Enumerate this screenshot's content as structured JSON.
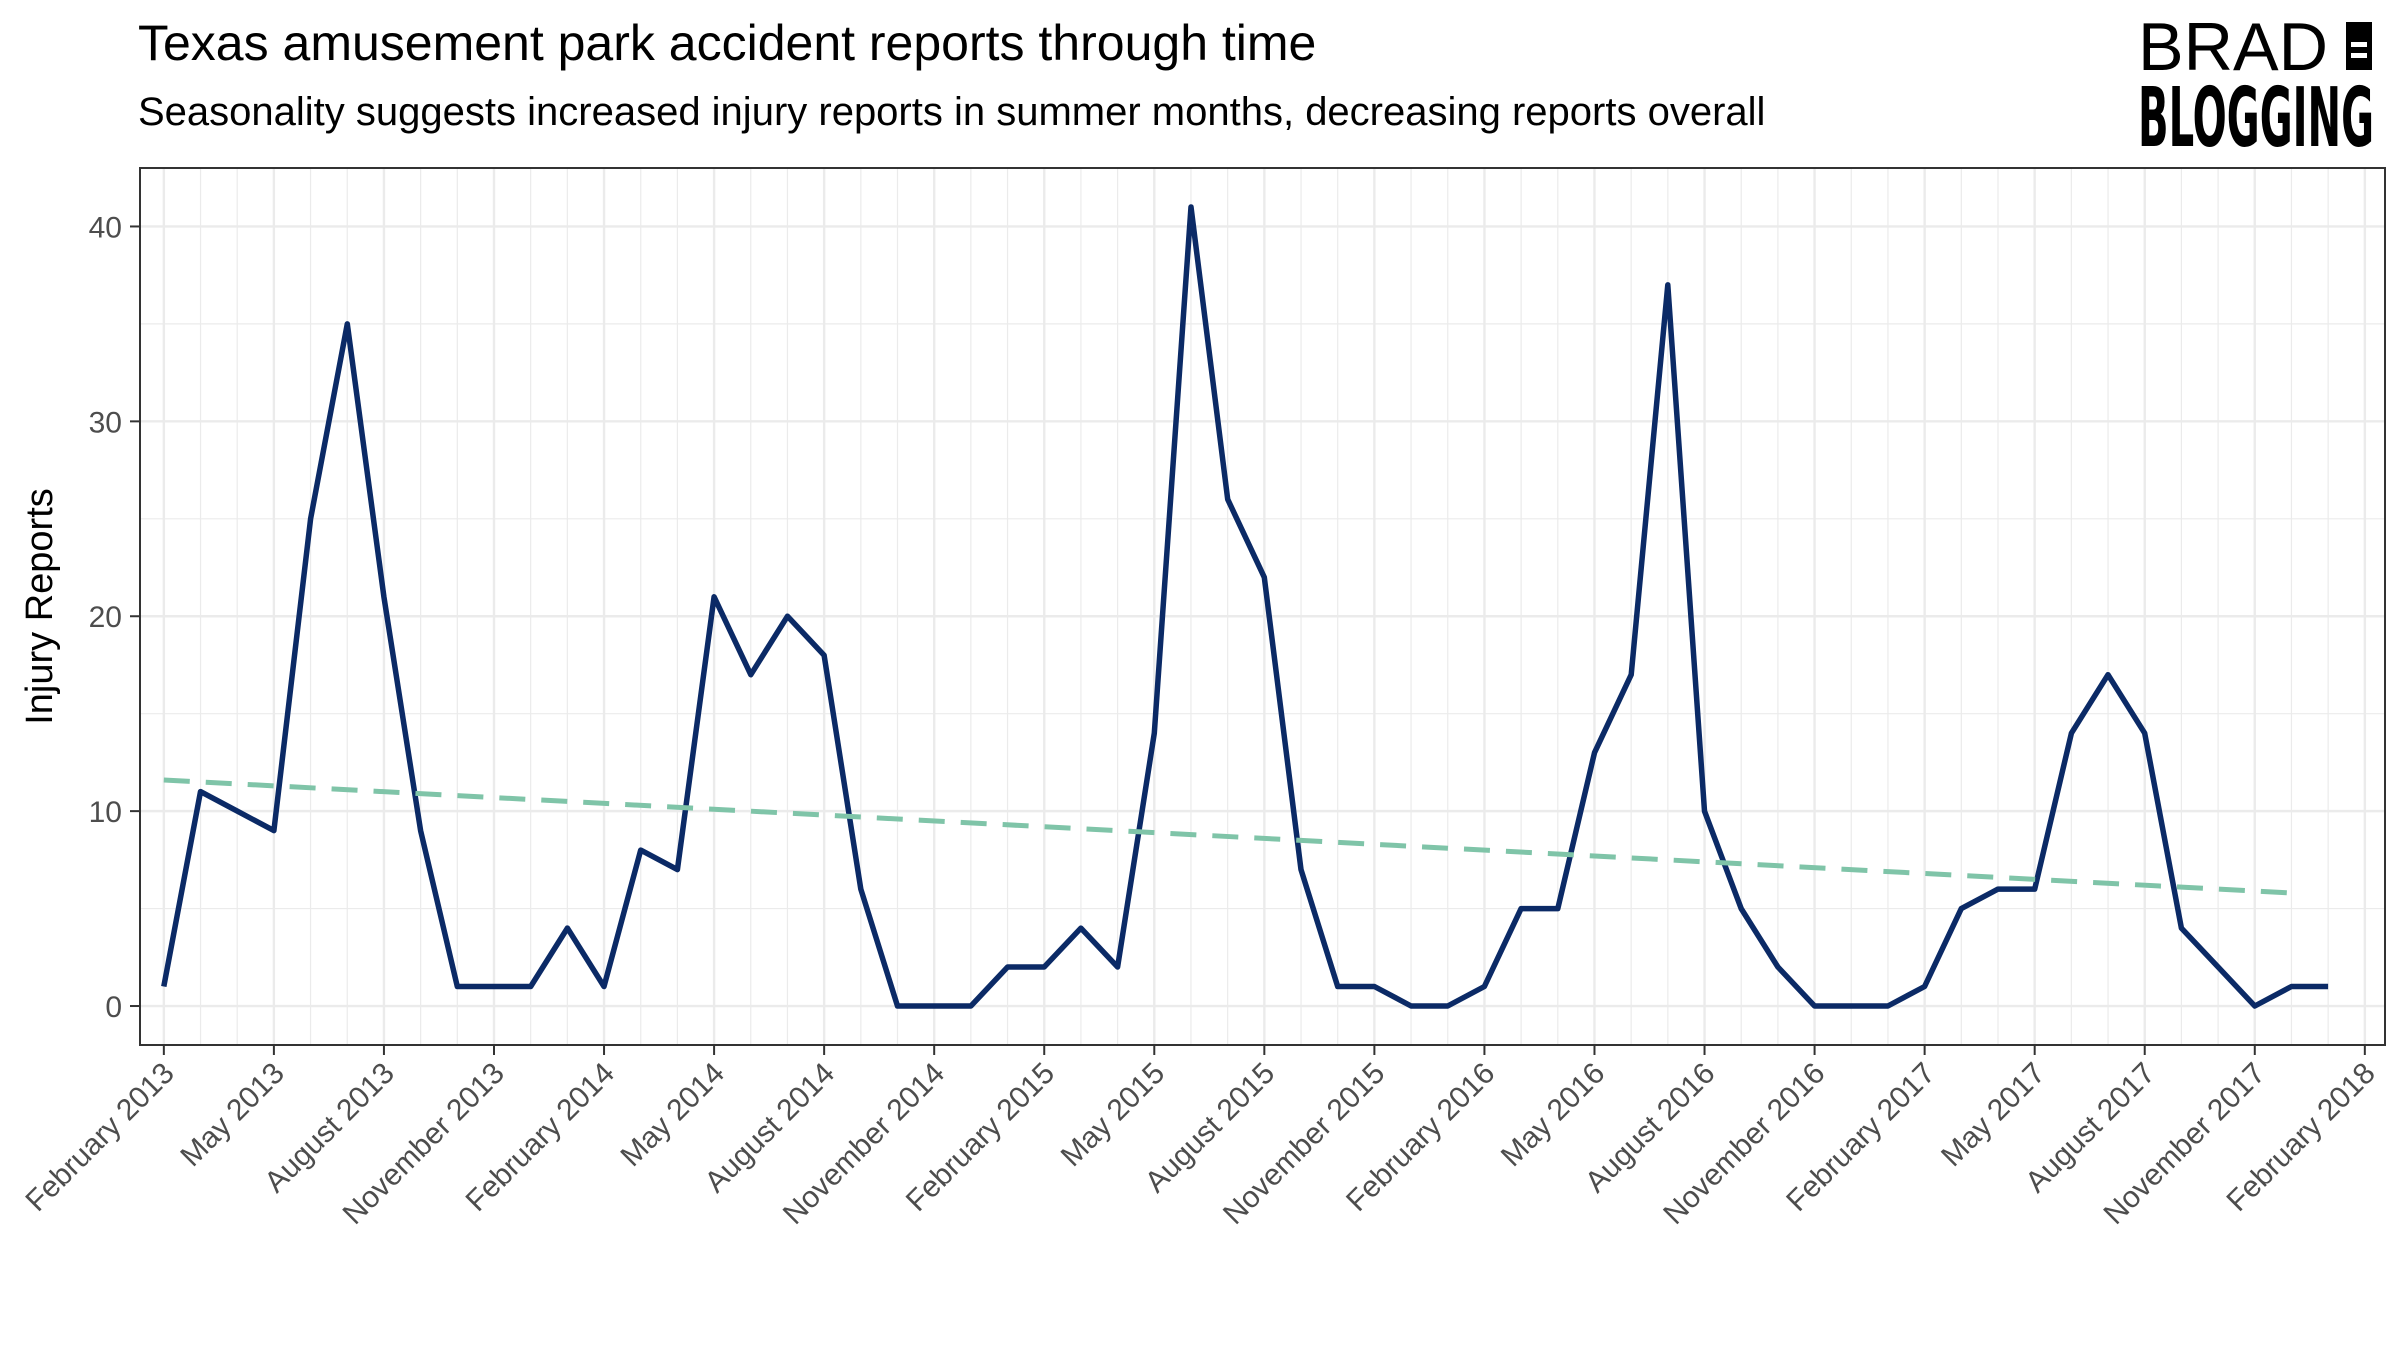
{
  "title": "Texas amusement park accident reports through time",
  "subtitle": "Seasonality suggests increased injury reports in summer months, decreasing reports overall",
  "logo": {
    "line1": "BRAD",
    "line2": "BLOGGING",
    "badge": "S"
  },
  "colors": {
    "series": "#0b2a66",
    "trend": "#7fc4a8",
    "grid": "#ebebeb",
    "panel_border": "#333333",
    "tick_text": "#4d4d4d"
  },
  "chart_data": {
    "type": "line",
    "title": "Texas amusement park accident reports through time",
    "subtitle": "Seasonality suggests increased injury reports in summer months, decreasing reports overall",
    "xlabel": "",
    "ylabel": "Injury Reports",
    "x_tick_labels": [
      "February 2013",
      "May 2013",
      "August 2013",
      "November 2013",
      "February 2014",
      "May 2014",
      "August 2014",
      "November 2014",
      "February 2015",
      "May 2015",
      "August 2015",
      "November 2015",
      "February 2016",
      "May 2016",
      "August 2016",
      "November 2016",
      "February 2017",
      "May 2017",
      "August 2017",
      "November 2017",
      "February 2018"
    ],
    "y_ticks": [
      0,
      10,
      20,
      30,
      40
    ],
    "ylim": [
      -2,
      43
    ],
    "xlim": [
      "2013-01",
      "2018-02"
    ],
    "grid": true,
    "series": [
      {
        "style": "solid",
        "x": [
          "2013-02",
          "2013-03",
          "2013-04",
          "2013-05",
          "2013-06",
          "2013-07",
          "2013-08",
          "2013-09",
          "2013-10",
          "2013-11",
          "2013-12",
          "2014-01",
          "2014-02",
          "2014-03",
          "2014-04",
          "2014-05",
          "2014-06",
          "2014-07",
          "2014-08",
          "2014-09",
          "2014-10",
          "2014-11",
          "2014-12",
          "2015-01",
          "2015-02",
          "2015-03",
          "2015-04",
          "2015-05",
          "2015-06",
          "2015-07",
          "2015-08",
          "2015-09",
          "2015-10",
          "2015-11",
          "2015-12",
          "2016-01",
          "2016-02",
          "2016-03",
          "2016-04",
          "2016-05",
          "2016-06",
          "2016-07",
          "2016-08",
          "2016-09",
          "2016-10",
          "2016-11",
          "2016-12",
          "2017-01",
          "2017-02",
          "2017-03",
          "2017-04",
          "2017-05",
          "2017-06",
          "2017-07",
          "2017-08",
          "2017-09",
          "2017-10",
          "2017-11",
          "2017-12",
          "2018-01"
        ],
        "values": [
          1,
          11,
          10,
          9,
          25,
          35,
          21,
          9,
          1,
          1,
          1,
          4,
          1,
          8,
          7,
          21,
          17,
          20,
          18,
          6,
          0,
          0,
          0,
          2,
          2,
          4,
          2,
          14,
          41,
          26,
          22,
          7,
          1,
          1,
          0,
          0,
          1,
          5,
          5,
          13,
          17,
          37,
          10,
          5,
          2,
          0,
          0,
          0,
          1,
          5,
          6,
          6,
          14,
          17,
          14,
          4,
          2,
          0,
          1,
          1
        ]
      },
      {
        "style": "dashed",
        "x": [
          "2013-02",
          "2017-12"
        ],
        "values": [
          11.6,
          5.8
        ]
      }
    ]
  }
}
